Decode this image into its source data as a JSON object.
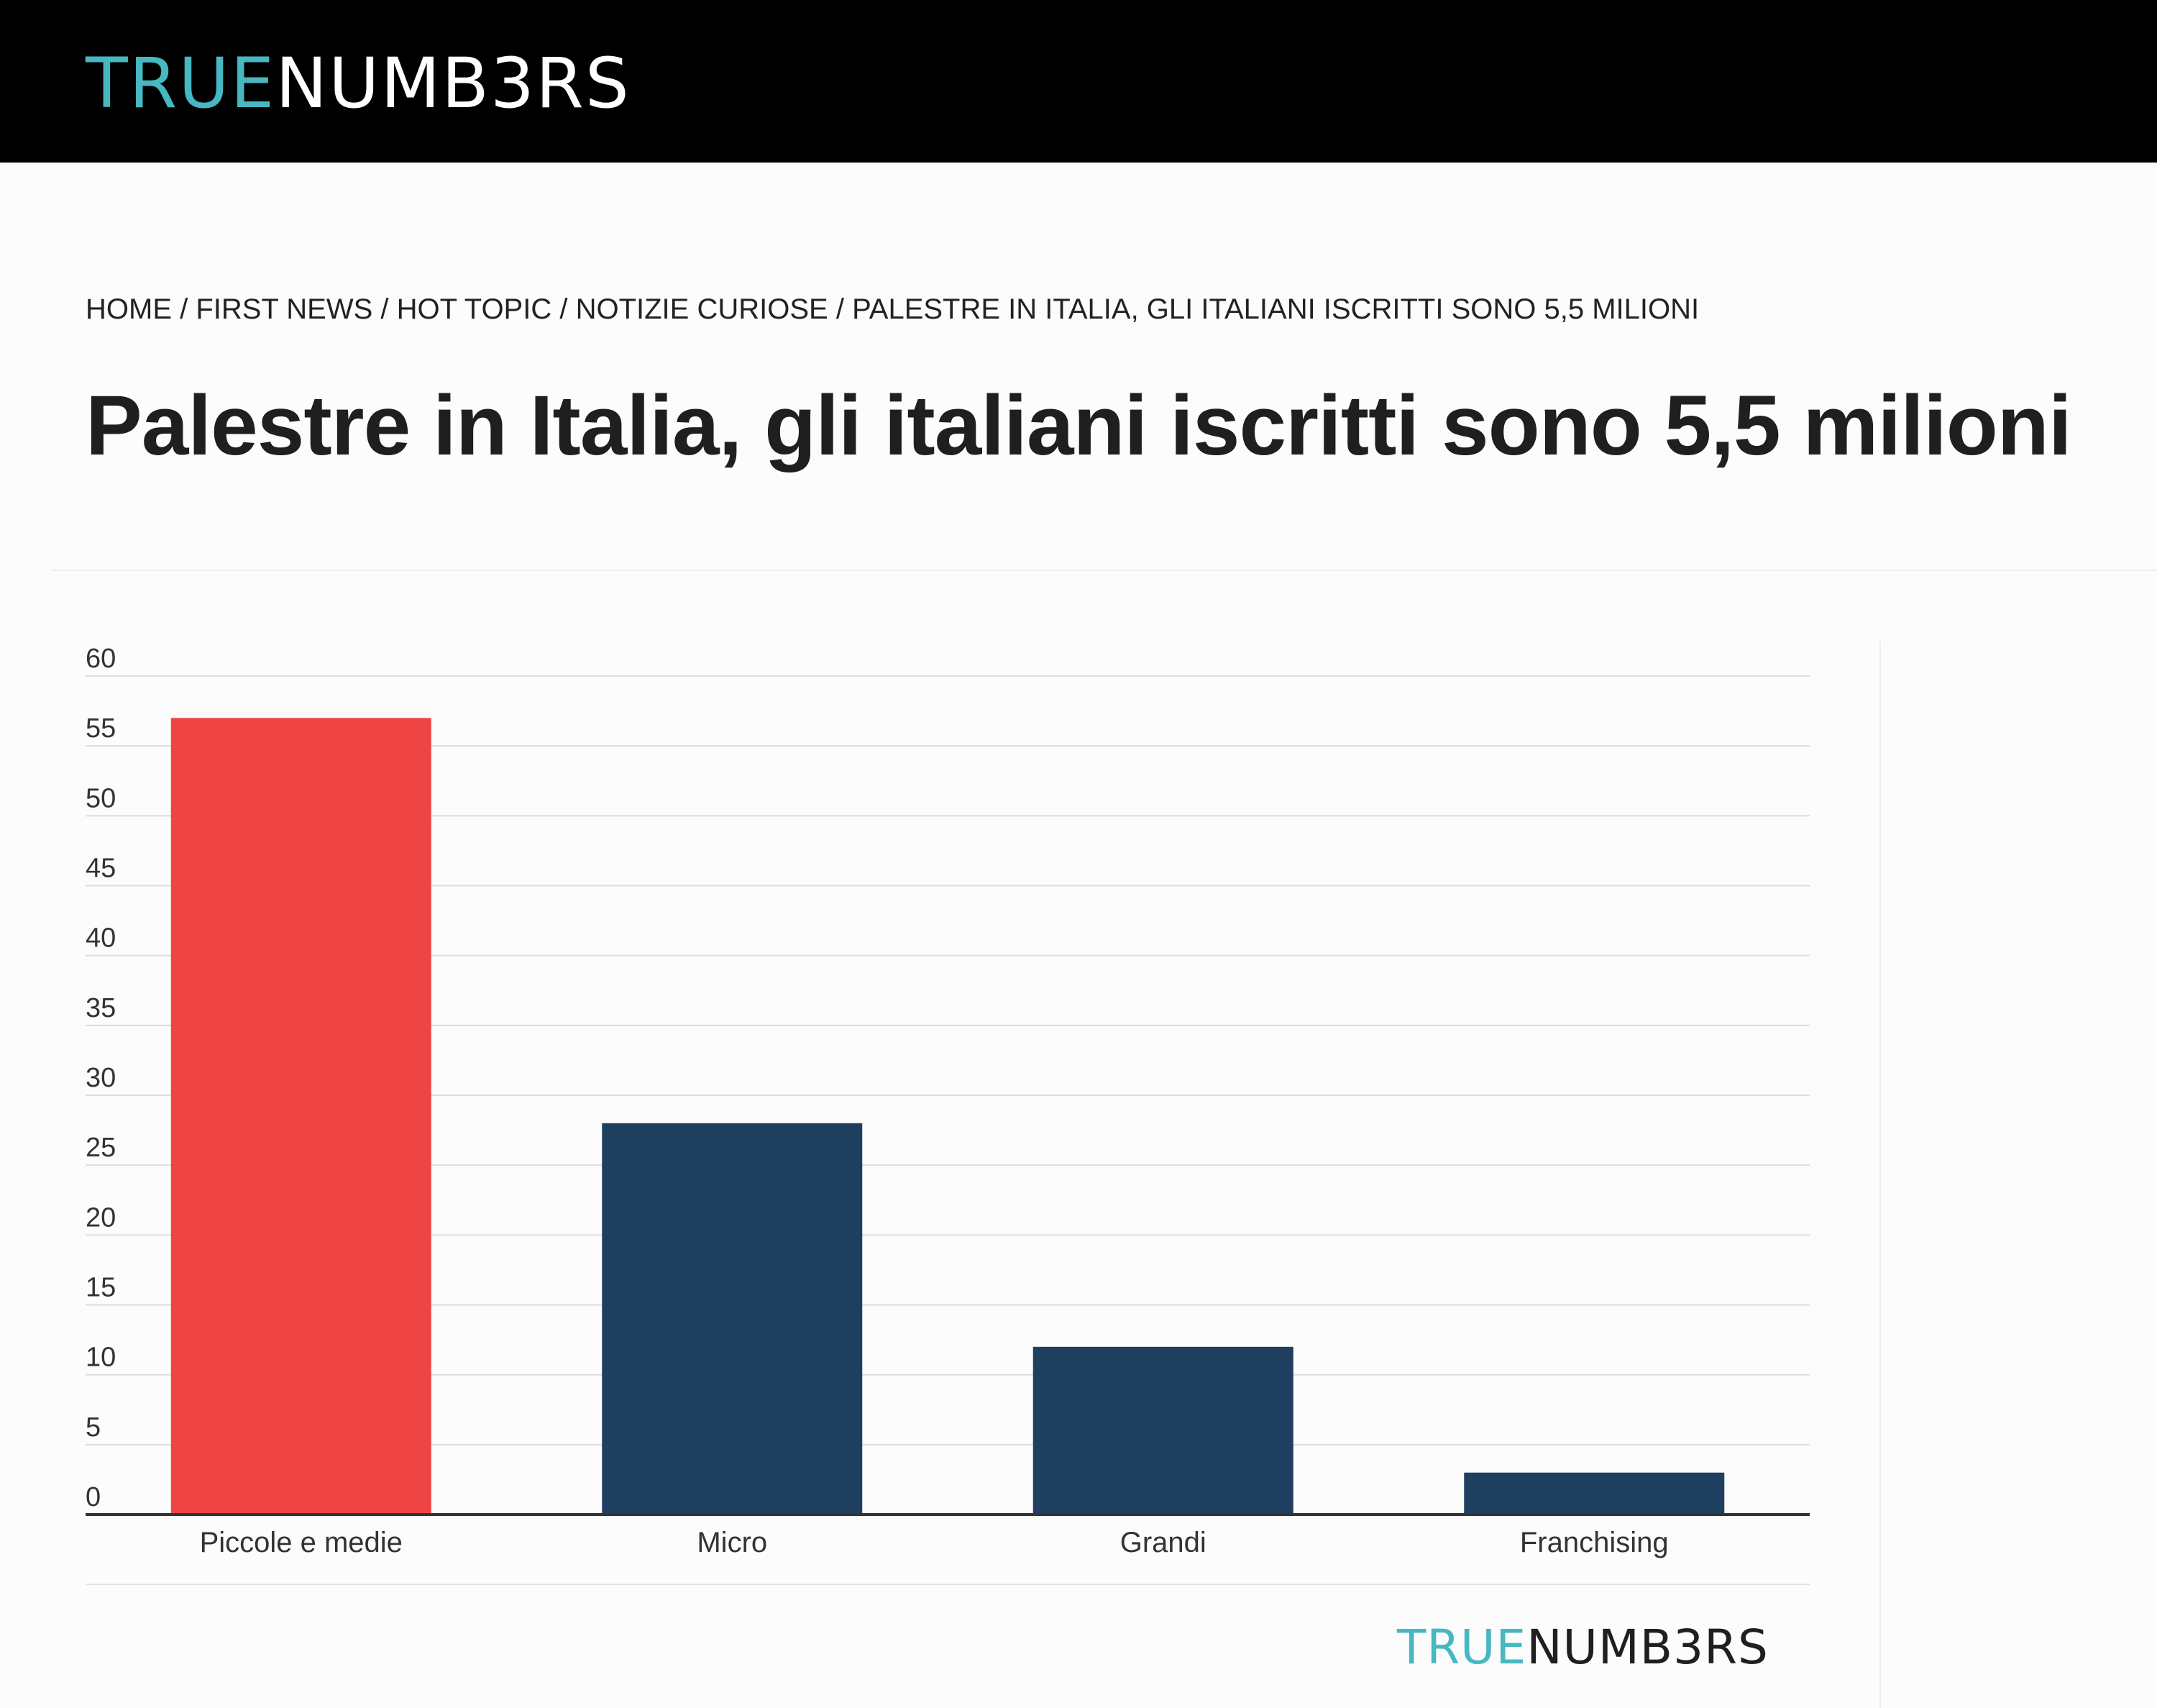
{
  "header": {
    "logo_accent": "TRUE",
    "logo_rest": "NUMB3RS"
  },
  "breadcrumb": {
    "items": [
      "HOME",
      "FIRST NEWS",
      "HOT TOPIC",
      "NOTIZIE CURIOSE",
      "PALESTRE IN ITALIA, GLI ITALIANI ISCRITTI SONO 5,5 MILIONI"
    ],
    "separator": " / "
  },
  "article": {
    "title": "Palestre in Italia, gli italiani iscritti sono 5,5 milioni"
  },
  "footer_logo": {
    "accent": "TRUE",
    "rest": "NUMB3RS"
  },
  "colors": {
    "highlight": "#ef4444",
    "bar": "#1f3f60",
    "logo_accent": "#47b7c1"
  },
  "chart_data": {
    "type": "bar",
    "categories": [
      "Piccole e medie",
      "Micro",
      "Grandi",
      "Franchising"
    ],
    "values": [
      57,
      28,
      12,
      3
    ],
    "bar_colors": [
      "#ef4444",
      "#1f3f60",
      "#1f3f60",
      "#1f3f60"
    ],
    "title": "",
    "xlabel": "",
    "ylabel": "",
    "ylim": [
      0,
      60
    ],
    "yticks": [
      0,
      5,
      10,
      15,
      20,
      25,
      30,
      35,
      40,
      45,
      50,
      55,
      60
    ],
    "grid": true,
    "legend": "none"
  }
}
